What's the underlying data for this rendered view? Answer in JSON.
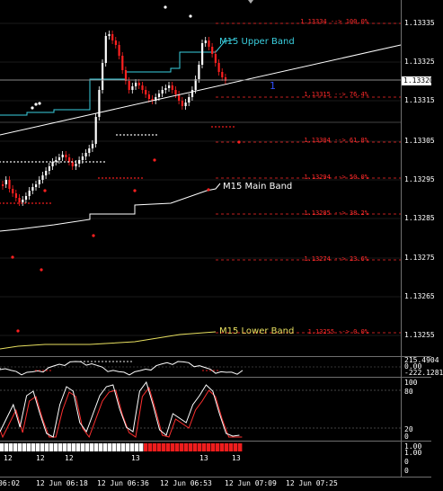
{
  "price_scale": [
    "1.13335",
    "1.13325",
    "1.13315",
    "1.13305",
    "1.13295",
    "1.13285",
    "1.13275",
    "1.13265",
    "1.13255"
  ],
  "current_price": "1.13320",
  "fib_levels": [
    {
      "text": "1.13334 --> 100.0%"
    },
    {
      "text": "1.13315 --> 76.4%"
    },
    {
      "text": "1.13304 --> 61.8%"
    },
    {
      "text": "1.13294 --> 50.0%"
    },
    {
      "text": "1.13285 --> 38.2%"
    },
    {
      "text": "1.13274 --> 23.6%"
    },
    {
      "text": "1.13255 --> 0.0%"
    }
  ],
  "bands": {
    "upper": "M15 Upper Band",
    "main": "M15 Main Band",
    "lower": "M15 Lower Band"
  },
  "marker_label": "1",
  "osc1_scale": [
    "215.4904",
    "0.00",
    "-222.1281"
  ],
  "osc2_scale": [
    "100",
    "80",
    "20",
    "0"
  ],
  "bar_labels": [
    "12",
    "12",
    "12",
    "13",
    "13",
    "13"
  ],
  "bar_scale": [
    "1.00",
    "1.00",
    "0",
    "0"
  ],
  "time_labels": [
    "06:02",
    "12 Jun 06:18",
    "12 Jun 06:36",
    "12 Jun 06:53",
    "12 Jun 07:09",
    "12 Jun 07:25"
  ],
  "colors": {
    "upper": "#3ad0e0",
    "main": "#ffffff",
    "lower": "#e8e060",
    "fib": "#ff2a2a",
    "bull": "#ffffff",
    "bear": "#ff2020"
  }
}
